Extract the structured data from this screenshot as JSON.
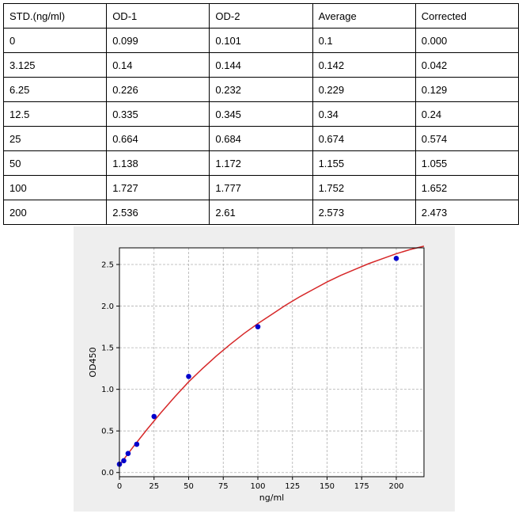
{
  "table": {
    "headers": [
      "STD.(ng/ml)",
      "OD-1",
      "OD-2",
      "Average",
      "Corrected"
    ],
    "rows": [
      [
        "0",
        "0.099",
        "0.101",
        "0.1",
        "0.000"
      ],
      [
        "3.125",
        "0.14",
        "0.144",
        "0.142",
        "0.042"
      ],
      [
        "6.25",
        "0.226",
        "0.232",
        "0.229",
        "0.129"
      ],
      [
        "12.5",
        "0.335",
        "0.345",
        "0.34",
        "0.24"
      ],
      [
        "25",
        "0.664",
        "0.684",
        "0.674",
        "0.574"
      ],
      [
        "50",
        "1.138",
        "1.172",
        "1.155",
        "1.055"
      ],
      [
        "100",
        "1.727",
        "1.777",
        "1.752",
        "1.652"
      ],
      [
        "200",
        "2.536",
        "2.61",
        "2.573",
        "2.473"
      ]
    ]
  },
  "chart_data": {
    "type": "scatter",
    "xlabel": "ng/ml",
    "ylabel": "OD450",
    "xlim": [
      0,
      220
    ],
    "ylim": [
      -0.05,
      2.7
    ],
    "xticks": [
      0,
      25,
      50,
      75,
      100,
      125,
      150,
      175,
      200
    ],
    "yticks": [
      0.0,
      0.5,
      1.0,
      1.5,
      2.0,
      2.5
    ],
    "xtick_labels": [
      "0",
      "25",
      "50",
      "75",
      "100",
      "125",
      "150",
      "175",
      "200"
    ],
    "ytick_labels": [
      "0.0",
      "0.5",
      "1.0",
      "1.5",
      "2.0",
      "2.5"
    ],
    "grid": true,
    "points": {
      "x": [
        0,
        3.125,
        6.25,
        12.5,
        25,
        50,
        100,
        200
      ],
      "y": [
        0.1,
        0.142,
        0.229,
        0.34,
        0.674,
        1.155,
        1.752,
        2.573
      ]
    },
    "fit_curve": {
      "x": [
        0,
        5,
        10,
        20,
        30,
        40,
        50,
        60,
        70,
        80,
        90,
        100,
        110,
        120,
        130,
        140,
        150,
        160,
        170,
        180,
        190,
        200,
        210,
        220
      ],
      "y": [
        0.09,
        0.2,
        0.31,
        0.52,
        0.72,
        0.91,
        1.09,
        1.25,
        1.4,
        1.54,
        1.67,
        1.79,
        1.9,
        2.01,
        2.11,
        2.2,
        2.29,
        2.37,
        2.44,
        2.51,
        2.57,
        2.63,
        2.68,
        2.72
      ]
    },
    "colors": {
      "points": "#0000cc",
      "fit_curve": "#d62728",
      "grid": "#b0b0b0",
      "plot_background": "#ffffff",
      "panel_background": "#eeeeee"
    }
  }
}
